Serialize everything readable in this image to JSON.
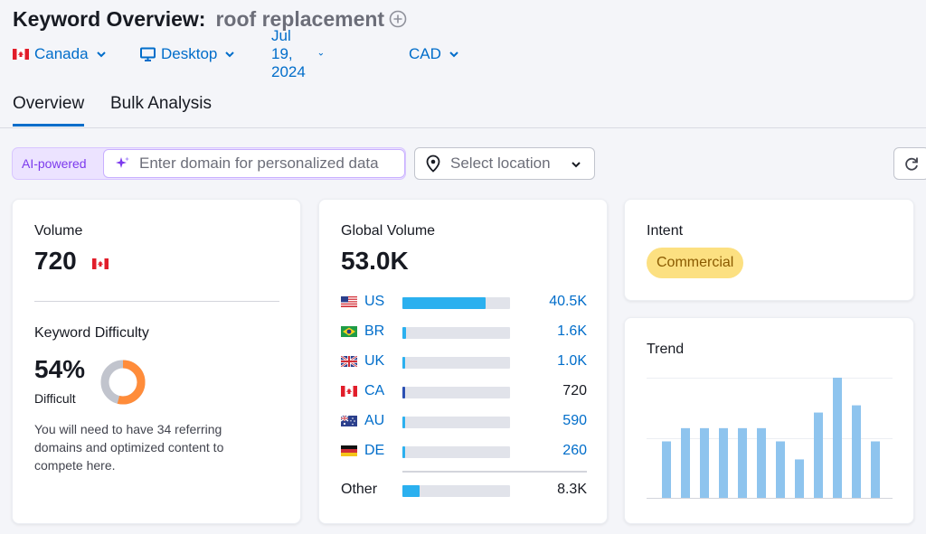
{
  "header": {
    "title": "Keyword Overview:",
    "keyword": "roof replacement",
    "filters": {
      "country": "Canada",
      "device": "Desktop",
      "date": "Jul 19, 2024",
      "currency": "CAD"
    }
  },
  "tabs": [
    {
      "label": "Overview",
      "active": true
    },
    {
      "label": "Bulk Analysis",
      "active": false
    }
  ],
  "ai_search": {
    "badge": "AI-powered",
    "placeholder": "Enter domain for personalized data"
  },
  "location_select": {
    "placeholder": "Select location"
  },
  "volume_card": {
    "label": "Volume",
    "value": "720",
    "kd_label": "Keyword Difficulty",
    "kd_value": "54%",
    "kd_percent": 54,
    "kd_level": "Difficult",
    "kd_description": "You will need to have 34 referring domains and optimized content to compete here."
  },
  "global_card": {
    "label": "Global Volume",
    "value": "53.0K",
    "countries": [
      {
        "code": "US",
        "value": "40.5K",
        "share": 0.77,
        "link": true
      },
      {
        "code": "BR",
        "value": "1.6K",
        "share": 0.03,
        "link": true
      },
      {
        "code": "UK",
        "value": "1.0K",
        "share": 0.02,
        "link": true
      },
      {
        "code": "CA",
        "value": "720",
        "share": 0.015,
        "link": false
      },
      {
        "code": "AU",
        "value": "590",
        "share": 0.012,
        "link": true
      },
      {
        "code": "DE",
        "value": "260",
        "share": 0.005,
        "link": true
      }
    ],
    "other": {
      "label": "Other",
      "value": "8.3K",
      "share": 0.16
    }
  },
  "intent_card": {
    "label": "Intent",
    "badge": "Commercial"
  },
  "trend_card": {
    "label": "Trend",
    "values": [
      0.47,
      0.58,
      0.58,
      0.58,
      0.58,
      0.58,
      0.47,
      0.32,
      0.71,
      1.0,
      0.77,
      0.47
    ]
  },
  "colors": {
    "accent": "#006dca",
    "bar": "#2bb0ef",
    "trend_bar": "#8ec4ee",
    "kd_orange": "#ff8c3a",
    "intent_badge": "#fce081"
  }
}
